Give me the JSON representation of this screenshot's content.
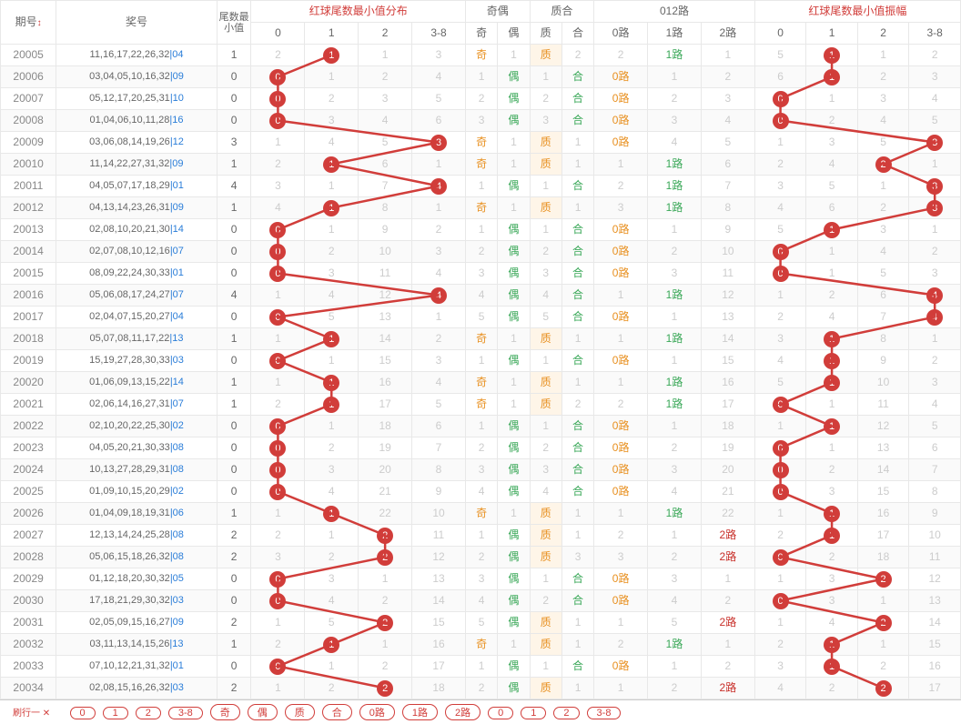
{
  "colors": {
    "red": "#d13d3a",
    "gray": "#ccc",
    "odd": "#e89020",
    "even": "#3aa858",
    "r0": "#e89020",
    "r1": "#3aa858",
    "r2": "#c8302a",
    "line": "#d13d3a",
    "border": "#e8e8e8",
    "bg": "#ffffff",
    "alt": "#fafafa"
  },
  "headers": {
    "qihao": "期号",
    "arrow": "↕",
    "jianghao": "奖号",
    "weishu": "尾数最\n小值",
    "g1": "红球尾数最小值分布",
    "g2": "奇偶",
    "g3": "质合",
    "g4": "012路",
    "g5": "红球尾数最小值振幅",
    "c": [
      "0",
      "1",
      "2",
      "3-8"
    ],
    "qou": [
      "奇",
      "偶"
    ],
    "zh": [
      "质",
      "合"
    ],
    "r012": [
      "0路",
      "1路",
      "2路"
    ]
  },
  "footLabel": "刷行一 ✕",
  "footBtns": [
    "0",
    "1",
    "2",
    "3-8",
    "奇",
    "偶",
    "质",
    "合",
    "0路",
    "1路",
    "2路",
    "0",
    "1",
    "2",
    "3-8"
  ],
  "rows": [
    {
      "q": "20005",
      "nums": "11,16,17,22,26,32",
      "b": "04",
      "sm": 1,
      "dist": [
        2,
        1,
        1,
        3
      ],
      "di": 1,
      "qo": [
        "奇",
        1
      ],
      "zh": [
        "质",
        2
      ],
      "r012": [
        2,
        "1路",
        1
      ],
      "zf": [
        5,
        1,
        1,
        2
      ],
      "zfi": 1
    },
    {
      "q": "20006",
      "nums": "03,04,05,10,16,32",
      "b": "09",
      "sm": 0,
      "dist": [
        0,
        1,
        2,
        4
      ],
      "di": 0,
      "qo": [
        1,
        "偶"
      ],
      "zh": [
        1,
        "合"
      ],
      "r012": [
        "0路",
        1,
        2
      ],
      "zf": [
        6,
        1,
        2,
        3
      ],
      "zfi": 1
    },
    {
      "q": "20007",
      "nums": "05,12,17,20,25,31",
      "b": "10",
      "sm": 0,
      "dist": [
        0,
        2,
        3,
        5
      ],
      "di": 0,
      "qo": [
        2,
        "偶"
      ],
      "zh": [
        2,
        "合"
      ],
      "r012": [
        "0路",
        2,
        3
      ],
      "zf": [
        0,
        1,
        3,
        4
      ],
      "zfi": 0
    },
    {
      "q": "20008",
      "nums": "01,04,06,10,11,28",
      "b": "16",
      "sm": 0,
      "dist": [
        0,
        3,
        4,
        6
      ],
      "di": 0,
      "qo": [
        3,
        "偶"
      ],
      "zh": [
        3,
        "合"
      ],
      "r012": [
        "0路",
        3,
        4
      ],
      "zf": [
        0,
        2,
        4,
        5
      ],
      "zfi": 0
    },
    {
      "q": "20009",
      "nums": "03,06,08,14,19,26",
      "b": "12",
      "sm": 3,
      "dist": [
        1,
        4,
        5,
        3
      ],
      "di": 3,
      "qo": [
        "奇",
        1
      ],
      "zh": [
        "质",
        1
      ],
      "r012": [
        "0路",
        4,
        5
      ],
      "zf": [
        1,
        3,
        5,
        3
      ],
      "zfi": 3
    },
    {
      "q": "20010",
      "nums": "11,14,22,27,31,32",
      "b": "09",
      "sm": 1,
      "dist": [
        2,
        1,
        6,
        1
      ],
      "di": 1,
      "qo": [
        "奇",
        1
      ],
      "zh": [
        "质",
        1
      ],
      "r012": [
        1,
        "1路",
        6
      ],
      "zf": [
        2,
        4,
        2,
        1
      ],
      "zfi": 2
    },
    {
      "q": "20011",
      "nums": "04,05,07,17,18,29",
      "b": "01",
      "sm": 4,
      "dist": [
        3,
        1,
        7,
        4
      ],
      "di": 3,
      "qo": [
        1,
        "偶"
      ],
      "zh": [
        1,
        "合"
      ],
      "r012": [
        2,
        "1路",
        7
      ],
      "zf": [
        3,
        5,
        1,
        3
      ],
      "zfi": 3
    },
    {
      "q": "20012",
      "nums": "04,13,14,23,26,31",
      "b": "09",
      "sm": 1,
      "dist": [
        4,
        1,
        8,
        1
      ],
      "di": 1,
      "qo": [
        "奇",
        1
      ],
      "zh": [
        "质",
        1
      ],
      "r012": [
        3,
        "1路",
        8
      ],
      "zf": [
        4,
        6,
        2,
        3
      ],
      "zfi": 3
    },
    {
      "q": "20013",
      "nums": "02,08,10,20,21,30",
      "b": "14",
      "sm": 0,
      "dist": [
        0,
        1,
        9,
        2
      ],
      "di": 0,
      "qo": [
        1,
        "偶"
      ],
      "zh": [
        1,
        "合"
      ],
      "r012": [
        "0路",
        1,
        9
      ],
      "zf": [
        5,
        1,
        3,
        1
      ],
      "zfi": 1
    },
    {
      "q": "20014",
      "nums": "02,07,08,10,12,16",
      "b": "07",
      "sm": 0,
      "dist": [
        0,
        2,
        10,
        3
      ],
      "di": 0,
      "qo": [
        2,
        "偶"
      ],
      "zh": [
        2,
        "合"
      ],
      "r012": [
        "0路",
        2,
        10
      ],
      "zf": [
        0,
        1,
        4,
        2
      ],
      "zfi": 0
    },
    {
      "q": "20015",
      "nums": "08,09,22,24,30,33",
      "b": "01",
      "sm": 0,
      "dist": [
        0,
        3,
        11,
        4
      ],
      "di": 0,
      "qo": [
        3,
        "偶"
      ],
      "zh": [
        3,
        "合"
      ],
      "r012": [
        "0路",
        3,
        11
      ],
      "zf": [
        0,
        1,
        5,
        3
      ],
      "zfi": 0
    },
    {
      "q": "20016",
      "nums": "05,06,08,17,24,27",
      "b": "07",
      "sm": 4,
      "dist": [
        1,
        4,
        12,
        4
      ],
      "di": 3,
      "qo": [
        4,
        "偶"
      ],
      "zh": [
        4,
        "合"
      ],
      "r012": [
        1,
        "1路",
        12
      ],
      "zf": [
        1,
        2,
        6,
        4
      ],
      "zfi": 3
    },
    {
      "q": "20017",
      "nums": "02,04,07,15,20,27",
      "b": "04",
      "sm": 0,
      "dist": [
        0,
        5,
        13,
        1
      ],
      "di": 0,
      "qo": [
        5,
        "偶"
      ],
      "zh": [
        5,
        "合"
      ],
      "r012": [
        "0路",
        1,
        13
      ],
      "zf": [
        2,
        4,
        7,
        4
      ],
      "zfi": 3
    },
    {
      "q": "20018",
      "nums": "05,07,08,11,17,22",
      "b": "13",
      "sm": 1,
      "dist": [
        1,
        1,
        14,
        2
      ],
      "di": 1,
      "qo": [
        "奇",
        1
      ],
      "zh": [
        "质",
        1
      ],
      "r012": [
        1,
        "1路",
        14
      ],
      "zf": [
        3,
        1,
        8,
        1
      ],
      "zfi": 1
    },
    {
      "q": "20019",
      "nums": "15,19,27,28,30,33",
      "b": "03",
      "sm": 0,
      "dist": [
        0,
        1,
        15,
        3
      ],
      "di": 0,
      "qo": [
        1,
        "偶"
      ],
      "zh": [
        1,
        "合"
      ],
      "r012": [
        "0路",
        1,
        15
      ],
      "zf": [
        4,
        1,
        9,
        2
      ],
      "zfi": 1
    },
    {
      "q": "20020",
      "nums": "01,06,09,13,15,22",
      "b": "14",
      "sm": 1,
      "dist": [
        1,
        1,
        16,
        4
      ],
      "di": 1,
      "qo": [
        "奇",
        1
      ],
      "zh": [
        "质",
        1
      ],
      "r012": [
        1,
        "1路",
        16
      ],
      "zf": [
        5,
        1,
        10,
        3
      ],
      "zfi": 1
    },
    {
      "q": "20021",
      "nums": "02,06,14,16,27,31",
      "b": "07",
      "sm": 1,
      "dist": [
        2,
        1,
        17,
        5
      ],
      "di": 1,
      "qo": [
        "奇",
        1
      ],
      "zh": [
        "质",
        2
      ],
      "r012": [
        2,
        "1路",
        17
      ],
      "zf": [
        0,
        1,
        11,
        4
      ],
      "zfi": 0
    },
    {
      "q": "20022",
      "nums": "02,10,20,22,25,30",
      "b": "02",
      "sm": 0,
      "dist": [
        0,
        1,
        18,
        6
      ],
      "di": 0,
      "qo": [
        1,
        "偶"
      ],
      "zh": [
        1,
        "合"
      ],
      "r012": [
        "0路",
        1,
        18
      ],
      "zf": [
        1,
        1,
        12,
        5
      ],
      "zfi": 1
    },
    {
      "q": "20023",
      "nums": "04,05,20,21,30,33",
      "b": "08",
      "sm": 0,
      "dist": [
        0,
        2,
        19,
        7
      ],
      "di": 0,
      "qo": [
        2,
        "偶"
      ],
      "zh": [
        2,
        "合"
      ],
      "r012": [
        "0路",
        2,
        19
      ],
      "zf": [
        0,
        1,
        13,
        6
      ],
      "zfi": 0
    },
    {
      "q": "20024",
      "nums": "10,13,27,28,29,31",
      "b": "08",
      "sm": 0,
      "dist": [
        0,
        3,
        20,
        8
      ],
      "di": 0,
      "qo": [
        3,
        "偶"
      ],
      "zh": [
        3,
        "合"
      ],
      "r012": [
        "0路",
        3,
        20
      ],
      "zf": [
        0,
        2,
        14,
        7
      ],
      "zfi": 0
    },
    {
      "q": "20025",
      "nums": "01,09,10,15,20,29",
      "b": "02",
      "sm": 0,
      "dist": [
        0,
        4,
        21,
        9
      ],
      "di": 0,
      "qo": [
        4,
        "偶"
      ],
      "zh": [
        4,
        "合"
      ],
      "r012": [
        "0路",
        4,
        21
      ],
      "zf": [
        0,
        3,
        15,
        8
      ],
      "zfi": 0
    },
    {
      "q": "20026",
      "nums": "01,04,09,18,19,31",
      "b": "06",
      "sm": 1,
      "dist": [
        1,
        1,
        22,
        10
      ],
      "di": 1,
      "qo": [
        "奇",
        1
      ],
      "zh": [
        "质",
        1
      ],
      "r012": [
        1,
        "1路",
        22
      ],
      "zf": [
        1,
        1,
        16,
        9
      ],
      "zfi": 1
    },
    {
      "q": "20027",
      "nums": "12,13,14,24,25,28",
      "b": "08",
      "sm": 2,
      "dist": [
        2,
        1,
        2,
        11
      ],
      "di": 2,
      "qo": [
        1,
        "偶"
      ],
      "zh": [
        "质",
        1
      ],
      "r012": [
        2,
        1,
        "2路"
      ],
      "zf": [
        2,
        1,
        17,
        10
      ],
      "zfi": 1
    },
    {
      "q": "20028",
      "nums": "05,06,15,18,26,32",
      "b": "08",
      "sm": 2,
      "dist": [
        3,
        2,
        2,
        12
      ],
      "di": 2,
      "qo": [
        2,
        "偶"
      ],
      "zh": [
        "质",
        3
      ],
      "r012": [
        3,
        2,
        "2路"
      ],
      "zf": [
        0,
        2,
        18,
        11
      ],
      "zfi": 0
    },
    {
      "q": "20029",
      "nums": "01,12,18,20,30,32",
      "b": "05",
      "sm": 0,
      "dist": [
        0,
        3,
        1,
        13
      ],
      "di": 0,
      "qo": [
        3,
        "偶"
      ],
      "zh": [
        1,
        "合"
      ],
      "r012": [
        "0路",
        3,
        1
      ],
      "zf": [
        1,
        3,
        2,
        12
      ],
      "zfi": 2
    },
    {
      "q": "20030",
      "nums": "17,18,21,29,30,32",
      "b": "03",
      "sm": 0,
      "dist": [
        0,
        4,
        2,
        14
      ],
      "di": 0,
      "qo": [
        4,
        "偶"
      ],
      "zh": [
        2,
        "合"
      ],
      "r012": [
        "0路",
        4,
        2
      ],
      "zf": [
        0,
        3,
        1,
        13
      ],
      "zfi": 0
    },
    {
      "q": "20031",
      "nums": "02,05,09,15,16,27",
      "b": "09",
      "sm": 2,
      "dist": [
        1,
        5,
        2,
        15
      ],
      "di": 2,
      "qo": [
        5,
        "偶"
      ],
      "zh": [
        "质",
        1
      ],
      "r012": [
        1,
        5,
        "2路"
      ],
      "zf": [
        1,
        4,
        2,
        14
      ],
      "zfi": 2
    },
    {
      "q": "20032",
      "nums": "03,11,13,14,15,26",
      "b": "13",
      "sm": 1,
      "dist": [
        2,
        1,
        1,
        16
      ],
      "di": 1,
      "qo": [
        "奇",
        1
      ],
      "zh": [
        "质",
        1
      ],
      "r012": [
        2,
        "1路",
        1
      ],
      "zf": [
        2,
        1,
        1,
        15
      ],
      "zfi": 1
    },
    {
      "q": "20033",
      "nums": "07,10,12,21,31,32",
      "b": "01",
      "sm": 0,
      "dist": [
        0,
        1,
        2,
        17
      ],
      "di": 0,
      "qo": [
        1,
        "偶"
      ],
      "zh": [
        1,
        "合"
      ],
      "r012": [
        "0路",
        1,
        2
      ],
      "zf": [
        3,
        1,
        2,
        16
      ],
      "zfi": 1
    },
    {
      "q": "20034",
      "nums": "02,08,15,16,26,32",
      "b": "03",
      "sm": 2,
      "dist": [
        1,
        2,
        2,
        18
      ],
      "di": 2,
      "qo": [
        2,
        "偶"
      ],
      "zh": [
        "质",
        1
      ],
      "r012": [
        1,
        2,
        "2路"
      ],
      "zf": [
        4,
        2,
        2,
        17
      ],
      "zfi": 2
    }
  ],
  "colWidths": {
    "qihao": 52,
    "jh": 150,
    "sm": 32,
    "dist": 50,
    "qo": 30,
    "zh": 30,
    "r012": 50,
    "zf": 50
  }
}
